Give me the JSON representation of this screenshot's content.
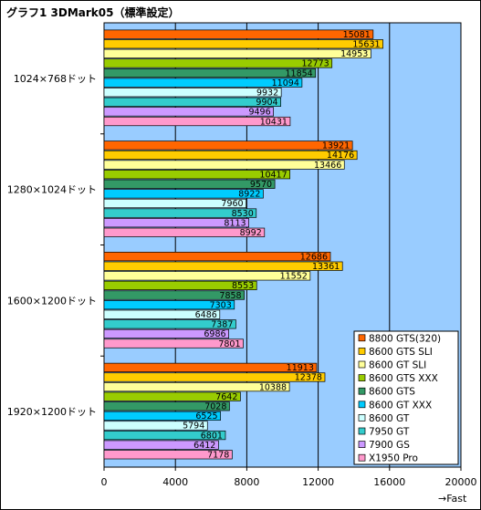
{
  "chart_data": {
    "type": "bar",
    "orientation": "horizontal",
    "title": "グラフ1 3DMark05（標準設定）",
    "xlabel": "→Fast",
    "xlim": [
      0,
      20000
    ],
    "xticks": [
      0,
      4000,
      8000,
      12000,
      16000,
      20000
    ],
    "grid": true,
    "legend_position": "right",
    "categories": [
      "1024×768ドット",
      "1280×1024ドット",
      "1600×1200ドット",
      "1920×1200ドット"
    ],
    "series": [
      {
        "name": "8800 GTS(320)",
        "color": "#ff6600",
        "values": [
          15081,
          13921,
          12686,
          11913
        ]
      },
      {
        "name": "8600 GTS SLI",
        "color": "#ffcc00",
        "values": [
          15631,
          14176,
          13361,
          12378
        ]
      },
      {
        "name": "8600 GT SLI",
        "color": "#ffff99",
        "values": [
          14953,
          13466,
          11552,
          10388
        ]
      },
      {
        "name": "8600 GTS XXX",
        "color": "#99cc00",
        "values": [
          12773,
          10417,
          8553,
          7642
        ]
      },
      {
        "name": "8600 GTS",
        "color": "#339966",
        "values": [
          11854,
          9570,
          7858,
          7028
        ]
      },
      {
        "name": "8600 GT XXX",
        "color": "#00ccff",
        "values": [
          11094,
          8922,
          7303,
          6525
        ]
      },
      {
        "name": "8600 GT",
        "color": "#ccffff",
        "values": [
          9932,
          7960,
          6486,
          5794
        ]
      },
      {
        "name": "7950 GT",
        "color": "#33cccc",
        "values": [
          9904,
          8530,
          7387,
          6801
        ]
      },
      {
        "name": "7900 GS",
        "color": "#cc99ff",
        "values": [
          9496,
          8113,
          6986,
          6412
        ]
      },
      {
        "name": "X1950 Pro",
        "color": "#ff99cc",
        "values": [
          10431,
          8992,
          7801,
          7178
        ]
      }
    ],
    "plot_background": "#99ccff"
  }
}
